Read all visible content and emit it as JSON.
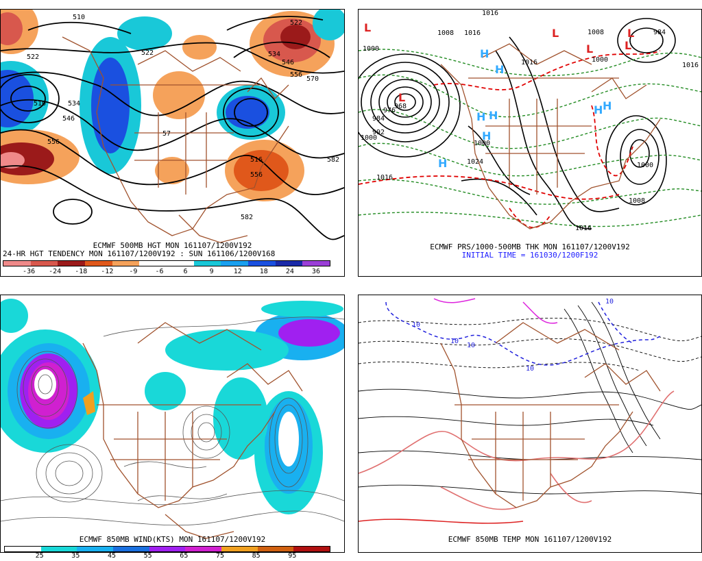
{
  "colors": {
    "map_brown": "#a0522d",
    "contour_black": "#000000",
    "green_dash": "#228b22",
    "red_dash": "#e00000",
    "high_blue": "#33aaff",
    "low_red": "#dd2222",
    "temp_pink": "#e07070",
    "temp_blue": "#2222dd",
    "temp_magenta": "#dd22dd"
  },
  "panel_tl": {
    "caption1": "ECMWF 500MB HGT MON 161107/1200V192",
    "caption2": "24-HR HGT TENDENCY MON 161107/1200V192 : SUN 161106/1200V168",
    "colorbar": [
      "#ef8a8a",
      "#d8584d",
      "#9b1a1a",
      "#e0581b",
      "#f5a25b",
      "#ffffff",
      "#ffffff",
      "#19c8d8",
      "#19a0f0",
      "#1a50e0",
      "#1a2aa8",
      "#9b3fd8"
    ],
    "ticks": [
      "-36",
      "-24",
      "-18",
      "-12",
      "-9",
      "-6",
      "6",
      "9",
      "12",
      "18",
      "24",
      "36"
    ],
    "contour_labels": [
      "510",
      "522",
      "510",
      "534",
      "546",
      "556",
      "522",
      "534",
      "546",
      "556",
      "570",
      "522",
      "516",
      "556",
      "582",
      "582",
      "57"
    ]
  },
  "panel_tr": {
    "caption1": "ECMWF PRS/1000-500MB THK MON 161107/1200V192",
    "caption2": "INITIAL TIME = 161030/1200F192",
    "highs": [
      "H",
      "H",
      "H",
      "H",
      "H",
      "H",
      "H",
      "H"
    ],
    "lows": [
      "L",
      "L",
      "L",
      "L",
      "L",
      "L"
    ],
    "contour_labels": [
      "1016",
      "1016",
      "1016",
      "1008",
      "1000",
      "1000",
      "992",
      "984",
      "976",
      "968",
      "1000",
      "1024",
      "1016",
      "1008",
      "1000",
      "1016",
      "984",
      "1000",
      "1008",
      "1016"
    ]
  },
  "panel_bl": {
    "caption1": "ECMWF 850MB WIND(KTS) MON 161107/1200V192",
    "colorbar": [
      "#ffffff",
      "#19d8d8",
      "#19b0f0",
      "#1a70e0",
      "#a020f0",
      "#d020d0",
      "#f0a020",
      "#d06010",
      "#b01010"
    ],
    "ticks": [
      "25",
      "35",
      "45",
      "55",
      "65",
      "75",
      "85",
      "95"
    ]
  },
  "panel_br": {
    "caption1": "ECMWF 850MB TEMP MON 161107/1200V192",
    "contour_labels": [
      "10",
      "10",
      "10",
      "10",
      "10"
    ]
  }
}
